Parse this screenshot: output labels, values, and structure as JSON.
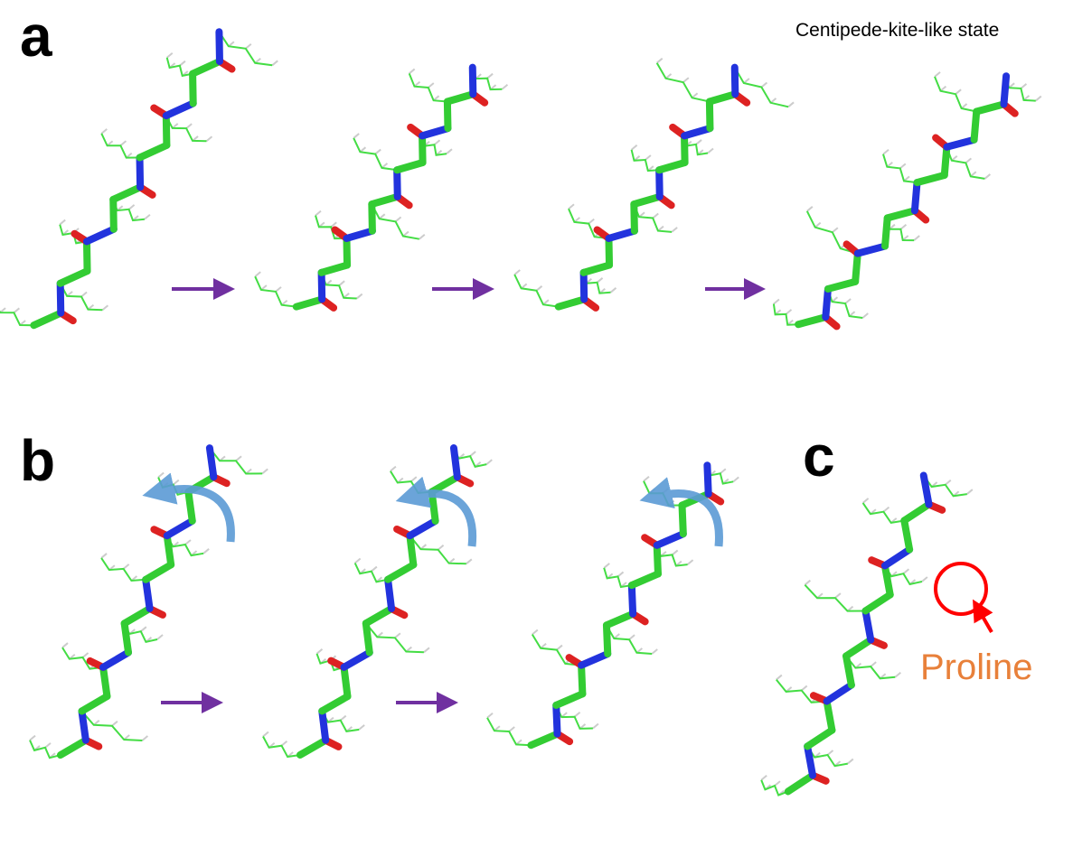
{
  "panels": [
    {
      "label": "a",
      "caption": "Centipede-kite-like state"
    },
    {
      "label": "b"
    },
    {
      "label": "c",
      "annotation": "Proline"
    }
  ]
}
